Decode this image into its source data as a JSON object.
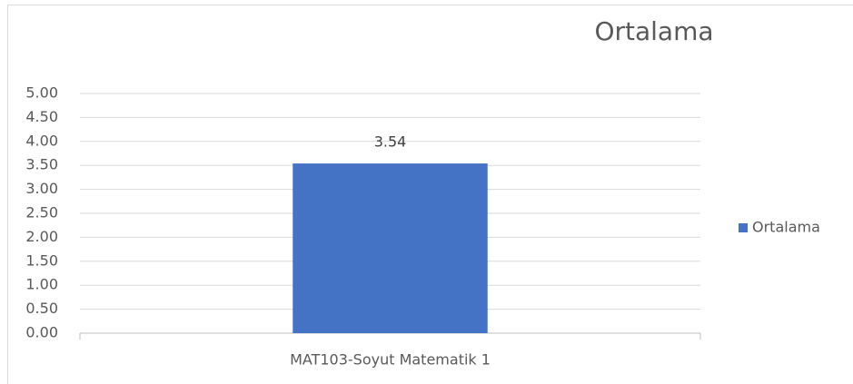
{
  "chart_data": {
    "type": "bar",
    "title": "Ortalama",
    "categories": [
      "MAT103-Soyut Matematik 1"
    ],
    "series": [
      {
        "name": "Ortalama",
        "color": "#4472c4",
        "values": [
          3.54
        ]
      }
    ],
    "ylim": [
      0,
      5
    ],
    "yticks": [
      {
        "value": 0,
        "label": "0.00"
      },
      {
        "value": 0.5,
        "label": "0.50"
      },
      {
        "value": 1,
        "label": "1.00"
      },
      {
        "value": 1.5,
        "label": "1.50"
      },
      {
        "value": 2,
        "label": "2.00"
      },
      {
        "value": 2.5,
        "label": "2.50"
      },
      {
        "value": 3,
        "label": "3.00"
      },
      {
        "value": 3.5,
        "label": "3.50"
      },
      {
        "value": 4,
        "label": "4.00"
      },
      {
        "value": 4.5,
        "label": "4.50"
      },
      {
        "value": 5,
        "label": "5.00"
      }
    ],
    "grid": true,
    "legend": "right"
  }
}
